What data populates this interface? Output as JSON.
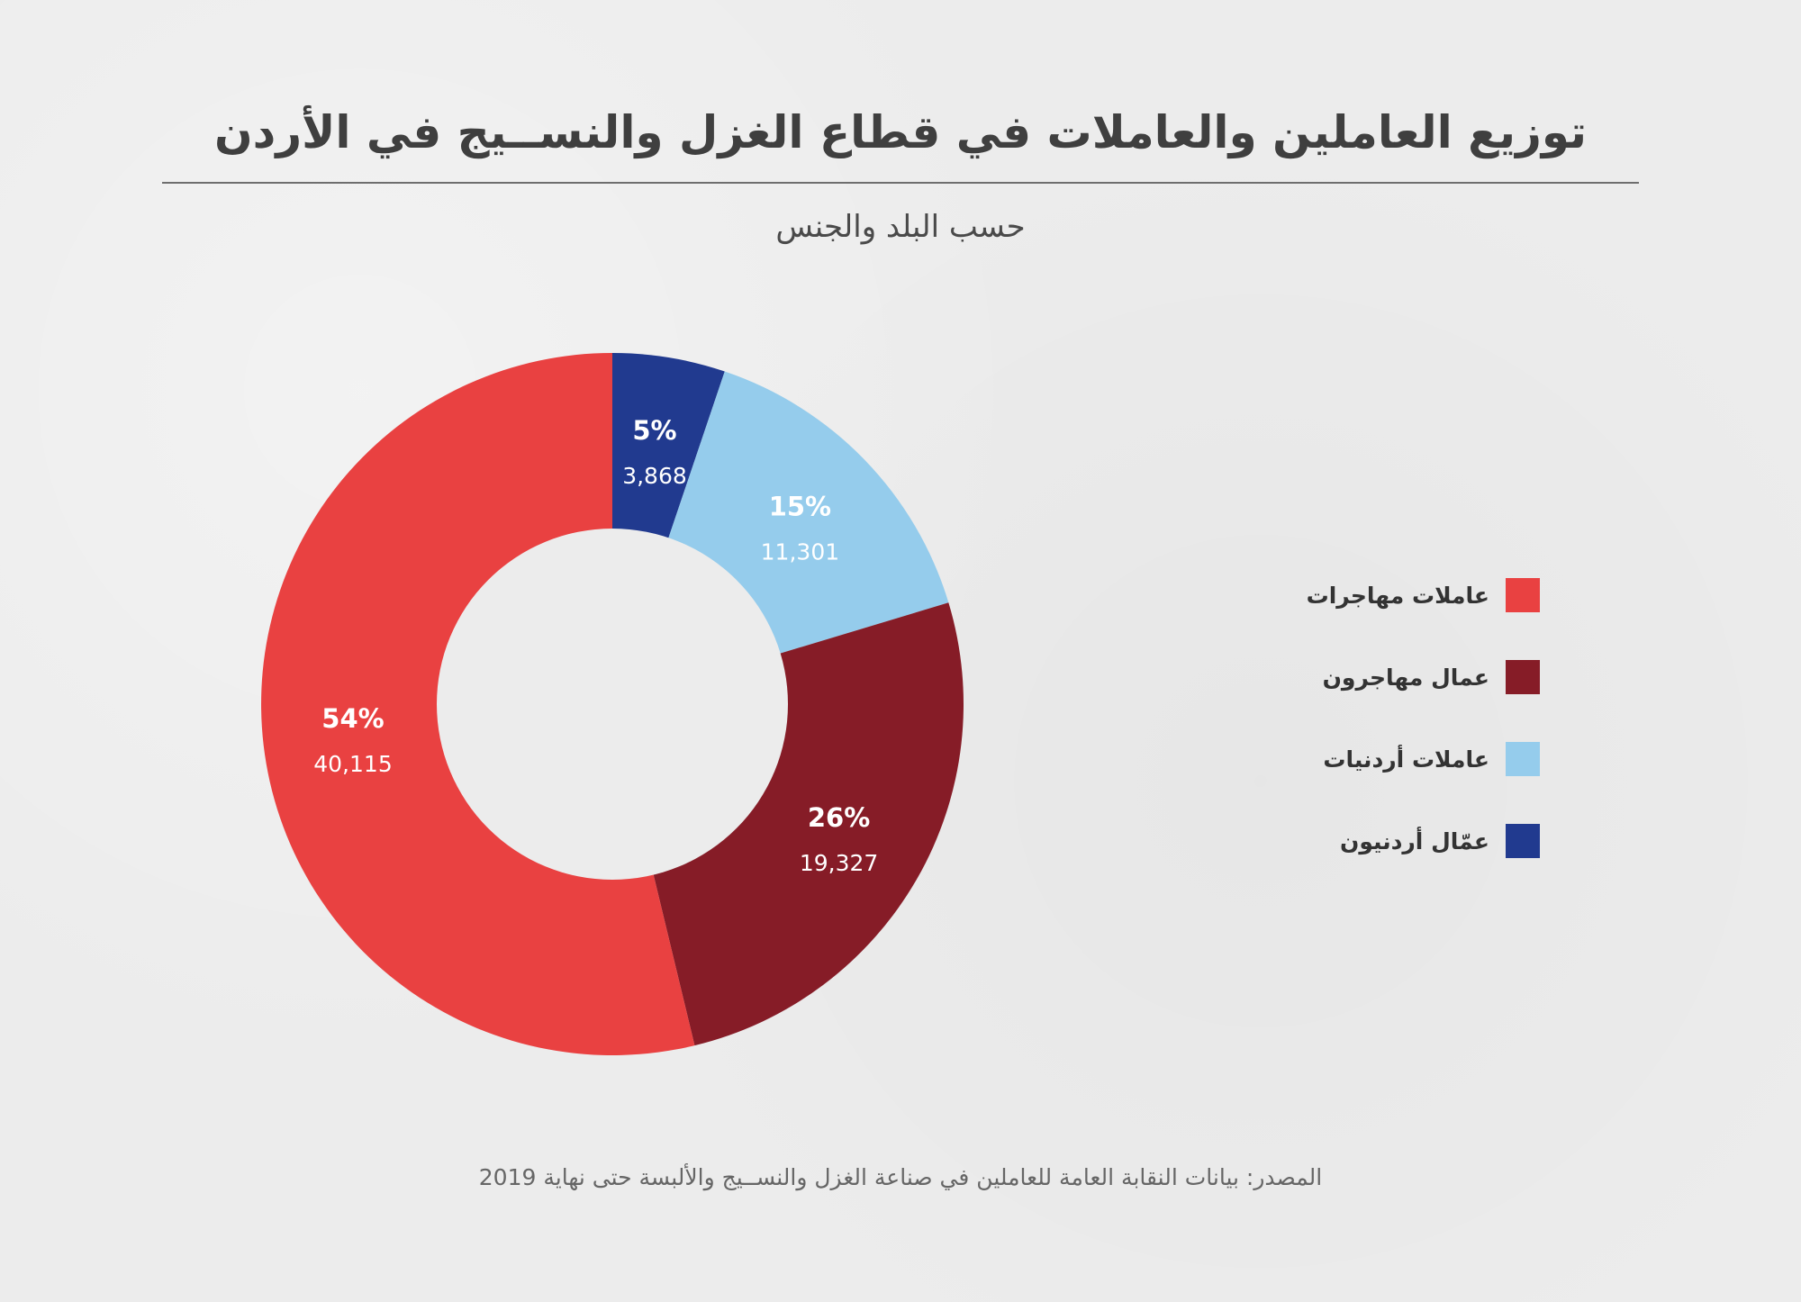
{
  "header": {
    "title": "توزيع العاملين والعاملات في قطاع الغزل والنســيج في الأردن",
    "subtitle": "حسب البلد والجنس"
  },
  "footer": {
    "source": "المصدر: بيانات النقابة العامة للعاملين في صناعة الغزل والنســيج والألبسة حتى نهاية 2019"
  },
  "chart_data": {
    "type": "pie",
    "variant": "donut",
    "title": "توزيع العاملين والعاملات في قطاع الغزل والنســيج في الأردن",
    "subtitle": "حسب البلد والجنس",
    "legend_position": "right",
    "slices": [
      {
        "name": "عمّال أردنيون",
        "value": 3868,
        "value_label": "3,868",
        "percent": 5,
        "percent_label": "5%",
        "color": "#213a8f"
      },
      {
        "name": "عاملات أردنيات",
        "value": 11301,
        "value_label": "11,301",
        "percent": 15,
        "percent_label": "15%",
        "color": "#95ccec"
      },
      {
        "name": "عمال مهاجرون",
        "value": 19327,
        "value_label": "19,327",
        "percent": 26,
        "percent_label": "26%",
        "color": "#861c27"
      },
      {
        "name": "عاملات مهاجرات",
        "value": 40115,
        "value_label": "40,115",
        "percent": 54,
        "percent_label": "54%",
        "color": "#e94141"
      }
    ],
    "legend_order": [
      "عاملات مهاجرات",
      "عمال مهاجرون",
      "عاملات أردنيات",
      "عمّال أردنيون"
    ]
  }
}
